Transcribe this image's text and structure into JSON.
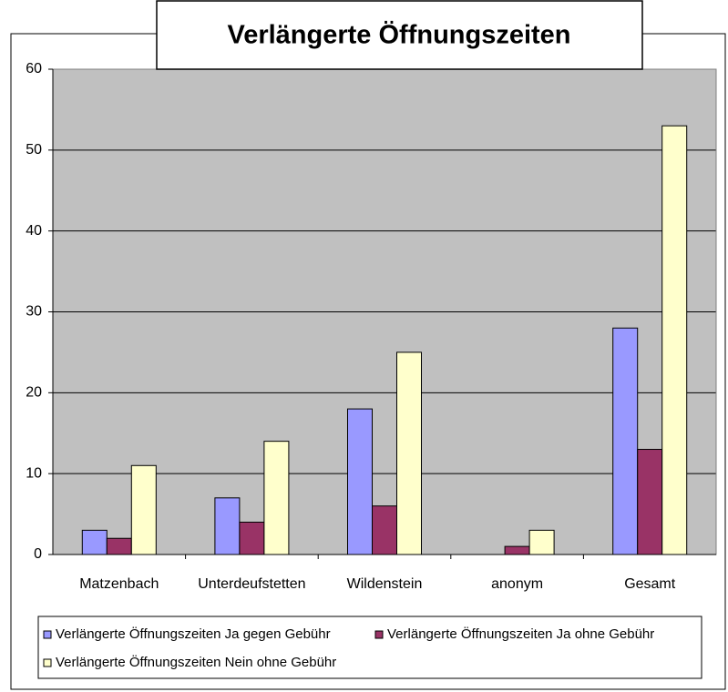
{
  "chart_data": {
    "type": "bar",
    "title": "Verlängerte Öffnungszeiten",
    "categories": [
      "Matzenbach",
      "Unterdeufstetten",
      "Wildenstein",
      "anonym",
      "Gesamt"
    ],
    "series": [
      {
        "name": "Verlängerte Öffnungszeiten Ja gegen Gebühr",
        "color": "#9999ff",
        "values": [
          3,
          7,
          18,
          0,
          28
        ]
      },
      {
        "name": "Verlängerte Öffnungszeiten Ja ohne Gebühr",
        "color": "#993366",
        "values": [
          2,
          4,
          6,
          1,
          13
        ]
      },
      {
        "name": "Verlängerte Öffnungszeiten Nein ohne Gebühr",
        "color": "#ffffcc",
        "values": [
          11,
          14,
          25,
          3,
          53
        ]
      }
    ],
    "ylim": [
      0,
      60
    ],
    "yticks": [
      0,
      10,
      20,
      30,
      40,
      50,
      60
    ],
    "grid": true,
    "legend": "bottom"
  }
}
